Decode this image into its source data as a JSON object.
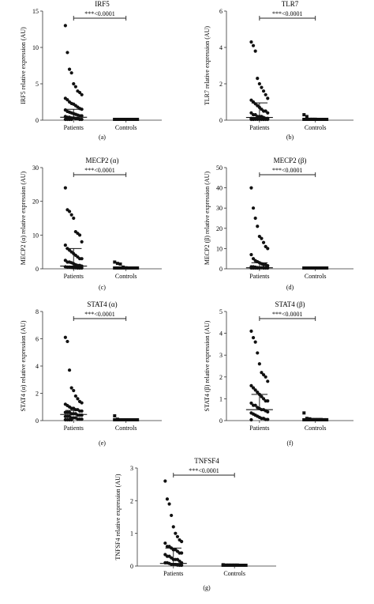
{
  "chart_data": [
    {
      "type": "scatter",
      "panel": "(a)",
      "title": "IRF5",
      "ylabel": "IRF5 relative expression (AU)",
      "ylim": [
        0,
        15
      ],
      "yticks": [
        0,
        5,
        10,
        15
      ],
      "categories": [
        "Patients",
        "Controls"
      ],
      "significance": "***<0.0001",
      "series": [
        {
          "values": [
            13,
            9.3,
            7.0,
            6.5,
            5.0,
            4.6,
            4.0,
            3.8,
            3.5,
            3.0,
            2.8,
            2.5,
            2.3,
            2.0,
            1.8,
            1.6,
            1.4,
            1.2,
            1.0,
            0.8,
            0.6,
            0.4,
            0.3,
            0.2,
            0.1,
            0.05,
            0.02,
            0.01,
            0.5,
            0.7,
            1.1,
            0.9,
            0.3,
            0.2,
            0.1,
            0.05,
            1.5,
            2.2,
            0.4,
            0.6
          ],
          "median": 0.4,
          "upper": 1.5
        },
        {
          "values": [
            0.02,
            0.01,
            0.03,
            0.05,
            0.02,
            0.04,
            0.01,
            0.03,
            0.02,
            0.06,
            0.01,
            0.02,
            0.03,
            0.05,
            0.02,
            0.01,
            0.04,
            0.02,
            0.03,
            0.01
          ],
          "median": 0.02,
          "upper": 0.05
        }
      ]
    },
    {
      "type": "scatter",
      "panel": "(b)",
      "title": "TLR7",
      "ylabel": "TLR7 relative expression (AU)",
      "ylim": [
        0,
        6
      ],
      "yticks": [
        0,
        2,
        4,
        6
      ],
      "categories": [
        "Patients",
        "Controls"
      ],
      "significance": "***<0.0001",
      "series": [
        {
          "values": [
            4.3,
            4.1,
            3.8,
            2.3,
            2.0,
            1.8,
            1.6,
            1.4,
            1.2,
            1.0,
            0.9,
            0.8,
            0.7,
            0.6,
            0.5,
            0.4,
            0.3,
            0.3,
            0.2,
            0.2,
            0.1,
            0.1,
            0.05,
            0.05,
            0.02,
            0.02,
            0.01,
            1.1,
            0.5,
            0.4,
            0.2,
            0.15,
            0.1,
            0.08,
            0.05,
            0.03,
            0.02,
            0.01
          ],
          "median": 0.15,
          "upper": 0.95
        },
        {
          "values": [
            0.3,
            0.2,
            0.05,
            0.02,
            0.03,
            0.01,
            0.04,
            0.02,
            0.05,
            0.01,
            0.02,
            0.03,
            0.04,
            0.01,
            0.02,
            0.05,
            0.03,
            0.02,
            0.01,
            0.03
          ],
          "median": 0.02,
          "upper": 0.05
        }
      ]
    },
    {
      "type": "scatter",
      "panel": "(c)",
      "title": "MECP2 (α)",
      "ylabel": "MECP2 (α) relative expression (AU)",
      "ylim": [
        0,
        30
      ],
      "yticks": [
        0,
        10,
        20,
        30
      ],
      "categories": [
        "Patients",
        "Controls"
      ],
      "significance": "***<0.0001",
      "series": [
        {
          "values": [
            24,
            17.5,
            17,
            16,
            15,
            11,
            10.5,
            10,
            8,
            7,
            6,
            5.5,
            5,
            4.5,
            4,
            3.5,
            3,
            2.5,
            2,
            1.8,
            1.5,
            1.2,
            1,
            0.8,
            0.6,
            0.5,
            0.4,
            0.3,
            0.2,
            0.1,
            1,
            0.5,
            2,
            3,
            0.3,
            0.2
          ],
          "median": 0.8,
          "upper": 6
        },
        {
          "values": [
            2.0,
            1.6,
            1.4,
            0.5,
            0.3,
            0.2,
            0.1,
            0.1,
            0.05,
            0.05,
            0.1,
            0.2,
            0.1,
            0.05,
            0.1,
            0.2,
            0.05,
            0.1,
            0.05,
            0.1
          ],
          "median": 0.1,
          "upper": 0.3
        }
      ]
    },
    {
      "type": "scatter",
      "panel": "(d)",
      "title": "MECP2 (β)",
      "ylabel": "MECP2 (β) relative expression (AU)",
      "ylim": [
        0,
        50
      ],
      "yticks": [
        0,
        10,
        20,
        30,
        40,
        50
      ],
      "categories": [
        "Patients",
        "Controls"
      ],
      "significance": "***<0.0001",
      "series": [
        {
          "values": [
            40,
            30,
            25,
            21,
            16,
            15,
            13,
            11,
            10,
            7,
            5,
            4,
            3.5,
            3,
            2.5,
            2,
            1.5,
            1,
            0.8,
            0.6,
            0.5,
            0.4,
            0.3,
            0.2,
            0.1,
            0.1,
            0.05,
            1,
            2,
            0.5,
            0.3,
            0.2
          ],
          "median": 0.5,
          "upper": 3
        },
        {
          "values": [
            0.1,
            0.05,
            0.1,
            0.05,
            0.1,
            0.05,
            0.1,
            0.05,
            0.1,
            0.05,
            0.1,
            0.05,
            0.1,
            0.05,
            0.1,
            0.05,
            0.1,
            0.05,
            0.1,
            0.05
          ],
          "median": 0.05,
          "upper": 0.1
        }
      ]
    },
    {
      "type": "scatter",
      "panel": "(e)",
      "title": "STAT4 (α)",
      "ylabel": "STAT4 (α) relative expression (AU)",
      "ylim": [
        0,
        8
      ],
      "yticks": [
        0,
        2,
        4,
        6,
        8
      ],
      "categories": [
        "Patients",
        "Controls"
      ],
      "significance": "***<0.0001",
      "series": [
        {
          "values": [
            6.1,
            5.8,
            3.7,
            2.4,
            2.2,
            1.8,
            1.6,
            1.4,
            1.2,
            1.1,
            1.0,
            0.9,
            0.8,
            0.8,
            0.7,
            0.7,
            0.6,
            0.6,
            0.5,
            0.5,
            0.5,
            0.4,
            0.4,
            0.3,
            0.3,
            0.3,
            0.2,
            0.2,
            0.2,
            0.1,
            0.1,
            0.1,
            0.05,
            0.05,
            0.02,
            0.02,
            0.6,
            0.4,
            0.9,
            1.3
          ],
          "median": 0.45,
          "upper": 0.75
        },
        {
          "values": [
            0.35,
            0.1,
            0.05,
            0.05,
            0.02,
            0.02,
            0.03,
            0.01,
            0.05,
            0.02,
            0.01,
            0.03,
            0.04,
            0.02,
            0.01,
            0.03,
            0.02,
            0.01,
            0.02,
            0.03
          ],
          "median": 0.03,
          "upper": 0.06
        }
      ]
    },
    {
      "type": "scatter",
      "panel": "(f)",
      "title": "STAT4 (β)",
      "ylabel": "STAT4 (β) relative expression (AU)",
      "ylim": [
        0,
        5
      ],
      "yticks": [
        0,
        1,
        2,
        3,
        4,
        5
      ],
      "categories": [
        "Patients",
        "Controls"
      ],
      "significance": "***<0.0001",
      "series": [
        {
          "values": [
            4.1,
            3.8,
            3.6,
            3.1,
            2.6,
            2.2,
            2.1,
            2.0,
            1.8,
            1.6,
            1.5,
            1.4,
            1.3,
            1.2,
            1.1,
            1.0,
            0.9,
            0.8,
            0.7,
            0.6,
            0.55,
            0.5,
            0.45,
            0.4,
            0.35,
            0.3,
            0.25,
            0.2,
            0.15,
            0.1,
            0.1,
            0.05,
            0.05,
            0.02,
            0.9,
            0.7,
            0.5
          ],
          "median": 0.5,
          "upper": 1.2
        },
        {
          "values": [
            0.35,
            0.1,
            0.08,
            0.05,
            0.05,
            0.04,
            0.03,
            0.03,
            0.02,
            0.02,
            0.05,
            0.04,
            0.03,
            0.02,
            0.01,
            0.05,
            0.03,
            0.02,
            0.01,
            0.03
          ],
          "median": 0.03,
          "upper": 0.06
        }
      ]
    },
    {
      "type": "scatter",
      "panel": "(g)",
      "title": "TNFSF4",
      "ylabel": "TNFSF4 relative expression (AU)",
      "ylim": [
        0,
        3
      ],
      "yticks": [
        0,
        1,
        2,
        3
      ],
      "categories": [
        "Patients",
        "Controls"
      ],
      "significance": "***<0.0001",
      "series": [
        {
          "values": [
            2.6,
            2.05,
            1.9,
            1.55,
            1.2,
            1.0,
            0.9,
            0.8,
            0.75,
            0.7,
            0.6,
            0.55,
            0.5,
            0.5,
            0.45,
            0.4,
            0.35,
            0.3,
            0.3,
            0.25,
            0.2,
            0.2,
            0.15,
            0.1,
            0.1,
            0.08,
            0.05,
            0.05,
            0.03,
            0.02,
            0.01,
            0.4,
            0.6,
            0.2,
            0.1,
            0.05
          ],
          "median": 0.08,
          "upper": 0.55
        },
        {
          "values": [
            0.04,
            0.03,
            0.02,
            0.02,
            0.01,
            0.03,
            0.02,
            0.01,
            0.02,
            0.03,
            0.01,
            0.02,
            0.03,
            0.02,
            0.01,
            0.02,
            0.03,
            0.02,
            0.01,
            0.02
          ],
          "median": 0.02,
          "upper": 0.03
        }
      ]
    }
  ]
}
